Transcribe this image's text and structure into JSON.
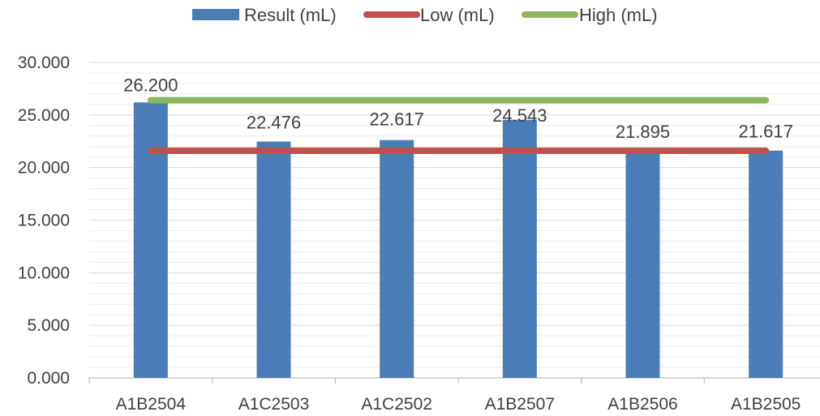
{
  "chart_data": {
    "type": "bar",
    "title": "",
    "xlabel": "",
    "ylabel": "",
    "categories": [
      "A1B2504",
      "A1C2503",
      "A1C2502",
      "A1B2507",
      "A1B2506",
      "A1B2505"
    ],
    "series": [
      {
        "name": "Result (mL)",
        "kind": "bar",
        "color": "#4A7DB7",
        "values": [
          26.2,
          22.476,
          22.617,
          24.543,
          21.895,
          21.617
        ],
        "data_labels": [
          "26.200",
          "22.476",
          "22.617",
          "24.543",
          "21.895",
          "21.617"
        ]
      },
      {
        "name": "Low (mL)",
        "kind": "line",
        "color": "#C0504D",
        "values": [
          21.6,
          21.6,
          21.6,
          21.6,
          21.6,
          21.6
        ]
      },
      {
        "name": "High (mL)",
        "kind": "line",
        "color": "#8DB75A",
        "values": [
          26.4,
          26.4,
          26.4,
          26.4,
          26.4,
          26.4
        ]
      }
    ],
    "yticks": [
      "0.000",
      "5.000",
      "10.000",
      "15.000",
      "20.000",
      "25.000",
      "30.000"
    ],
    "ylim": [
      0,
      30
    ],
    "legend_position": "top",
    "gridlines": true
  }
}
